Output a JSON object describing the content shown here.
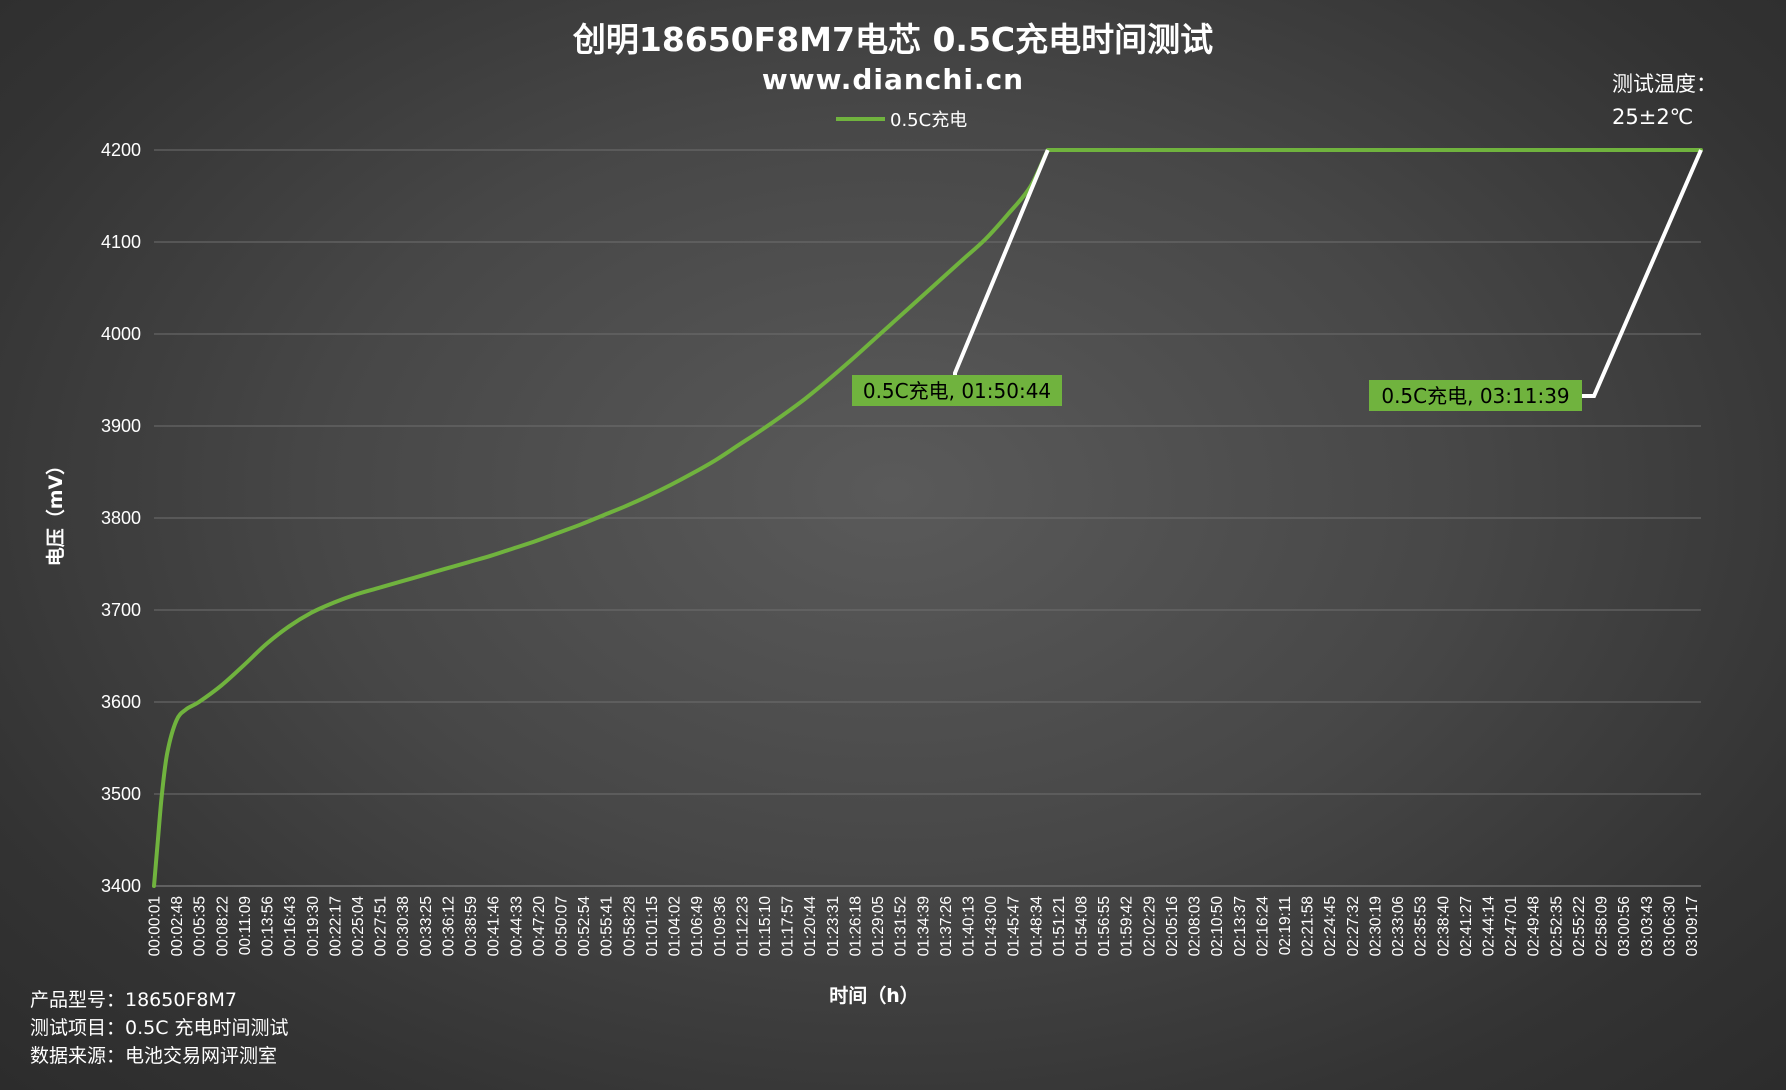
{
  "chart_data": {
    "type": "line",
    "title": "创明18650F8M7电芯 0.5C充电时间测试",
    "subtitle": "www.dianchi.cn",
    "xlabel": "时间（h）",
    "ylabel": "电压（mV）",
    "ylim": [
      3400,
      4200
    ],
    "yticks": [
      3400,
      3500,
      3600,
      3700,
      3800,
      3900,
      4000,
      4100,
      4200
    ],
    "grid": true,
    "legend_position": "top-center",
    "x_start": "00:00:01",
    "x_end": "03:11:39",
    "x_tick_labels": [
      "00:00:01",
      "00:02:48",
      "00:05:35",
      "00:08:22",
      "00:11:09",
      "00:13:56",
      "00:16:43",
      "00:19:30",
      "00:22:17",
      "00:25:04",
      "00:27:51",
      "00:30:38",
      "00:33:25",
      "00:36:12",
      "00:38:59",
      "00:41:46",
      "00:44:33",
      "00:47:20",
      "00:50:07",
      "00:52:54",
      "00:55:41",
      "00:58:28",
      "01:01:15",
      "01:04:02",
      "01:06:49",
      "01:09:36",
      "01:12:23",
      "01:15:10",
      "01:17:57",
      "01:20:44",
      "01:23:31",
      "01:26:18",
      "01:29:05",
      "01:31:52",
      "01:34:39",
      "01:37:26",
      "01:40:13",
      "01:43:00",
      "01:45:47",
      "01:48:34",
      "01:51:21",
      "01:54:08",
      "01:56:55",
      "01:59:42",
      "02:02:29",
      "02:05:16",
      "02:08:03",
      "02:10:50",
      "02:13:37",
      "02:16:24",
      "02:19:11",
      "02:21:58",
      "02:24:45",
      "02:27:32",
      "02:30:19",
      "02:33:06",
      "02:35:53",
      "02:38:40",
      "02:41:27",
      "02:44:14",
      "02:47:01",
      "02:49:48",
      "02:52:35",
      "02:55:22",
      "02:58:09",
      "03:00:56",
      "03:03:43",
      "03:06:30",
      "03:09:17"
    ],
    "series": [
      {
        "name": "0.5C充电",
        "color": "#70b33e",
        "points": [
          {
            "x": "00:00:01",
            "y": 3400
          },
          {
            "x": "00:00:30",
            "y": 3450
          },
          {
            "x": "00:01:00",
            "y": 3500
          },
          {
            "x": "00:01:40",
            "y": 3545
          },
          {
            "x": "00:02:48",
            "y": 3580
          },
          {
            "x": "00:04:00",
            "y": 3592
          },
          {
            "x": "00:05:35",
            "y": 3600
          },
          {
            "x": "00:08:22",
            "y": 3618
          },
          {
            "x": "00:11:09",
            "y": 3640
          },
          {
            "x": "00:13:56",
            "y": 3663
          },
          {
            "x": "00:16:43",
            "y": 3682
          },
          {
            "x": "00:19:30",
            "y": 3697
          },
          {
            "x": "00:22:17",
            "y": 3708
          },
          {
            "x": "00:25:04",
            "y": 3717
          },
          {
            "x": "00:27:51",
            "y": 3724
          },
          {
            "x": "00:30:38",
            "y": 3731
          },
          {
            "x": "00:33:25",
            "y": 3738
          },
          {
            "x": "00:36:12",
            "y": 3745
          },
          {
            "x": "00:38:59",
            "y": 3752
          },
          {
            "x": "00:41:46",
            "y": 3759
          },
          {
            "x": "00:44:33",
            "y": 3767
          },
          {
            "x": "00:47:20",
            "y": 3775
          },
          {
            "x": "00:50:07",
            "y": 3784
          },
          {
            "x": "00:52:54",
            "y": 3793
          },
          {
            "x": "00:55:41",
            "y": 3803
          },
          {
            "x": "00:58:28",
            "y": 3813
          },
          {
            "x": "01:01:15",
            "y": 3824
          },
          {
            "x": "01:04:02",
            "y": 3836
          },
          {
            "x": "01:06:49",
            "y": 3849
          },
          {
            "x": "01:09:36",
            "y": 3863
          },
          {
            "x": "01:12:23",
            "y": 3879
          },
          {
            "x": "01:15:10",
            "y": 3895
          },
          {
            "x": "01:17:57",
            "y": 3912
          },
          {
            "x": "01:20:44",
            "y": 3930
          },
          {
            "x": "01:23:31",
            "y": 3950
          },
          {
            "x": "01:26:18",
            "y": 3971
          },
          {
            "x": "01:29:05",
            "y": 3993
          },
          {
            "x": "01:31:52",
            "y": 4015
          },
          {
            "x": "01:34:39",
            "y": 4037
          },
          {
            "x": "01:37:26",
            "y": 4059
          },
          {
            "x": "01:40:13",
            "y": 4081
          },
          {
            "x": "01:43:00",
            "y": 4103
          },
          {
            "x": "01:45:47",
            "y": 4130
          },
          {
            "x": "01:48:34",
            "y": 4160
          },
          {
            "x": "01:50:44",
            "y": 4200
          },
          {
            "x": "02:30:00",
            "y": 4200
          },
          {
            "x": "03:11:39",
            "y": 4200
          }
        ]
      }
    ],
    "annotations": [
      {
        "series": "0.5C充电",
        "x": "01:50:44",
        "y": 4200,
        "text": "0.5C充电, 01:50:44"
      },
      {
        "series": "0.5C充电",
        "x": "03:11:39",
        "y": 4200,
        "text": "0.5C充电, 03:11:39"
      }
    ]
  },
  "notes": {
    "temperature_label": "测试温度：",
    "temperature_value": "25±2℃"
  },
  "footer": {
    "model": "产品型号：18650F8M7",
    "test_item": "测试项目：0.5C 充电时间测试",
    "source": "数据来源：电池交易网评测室"
  }
}
